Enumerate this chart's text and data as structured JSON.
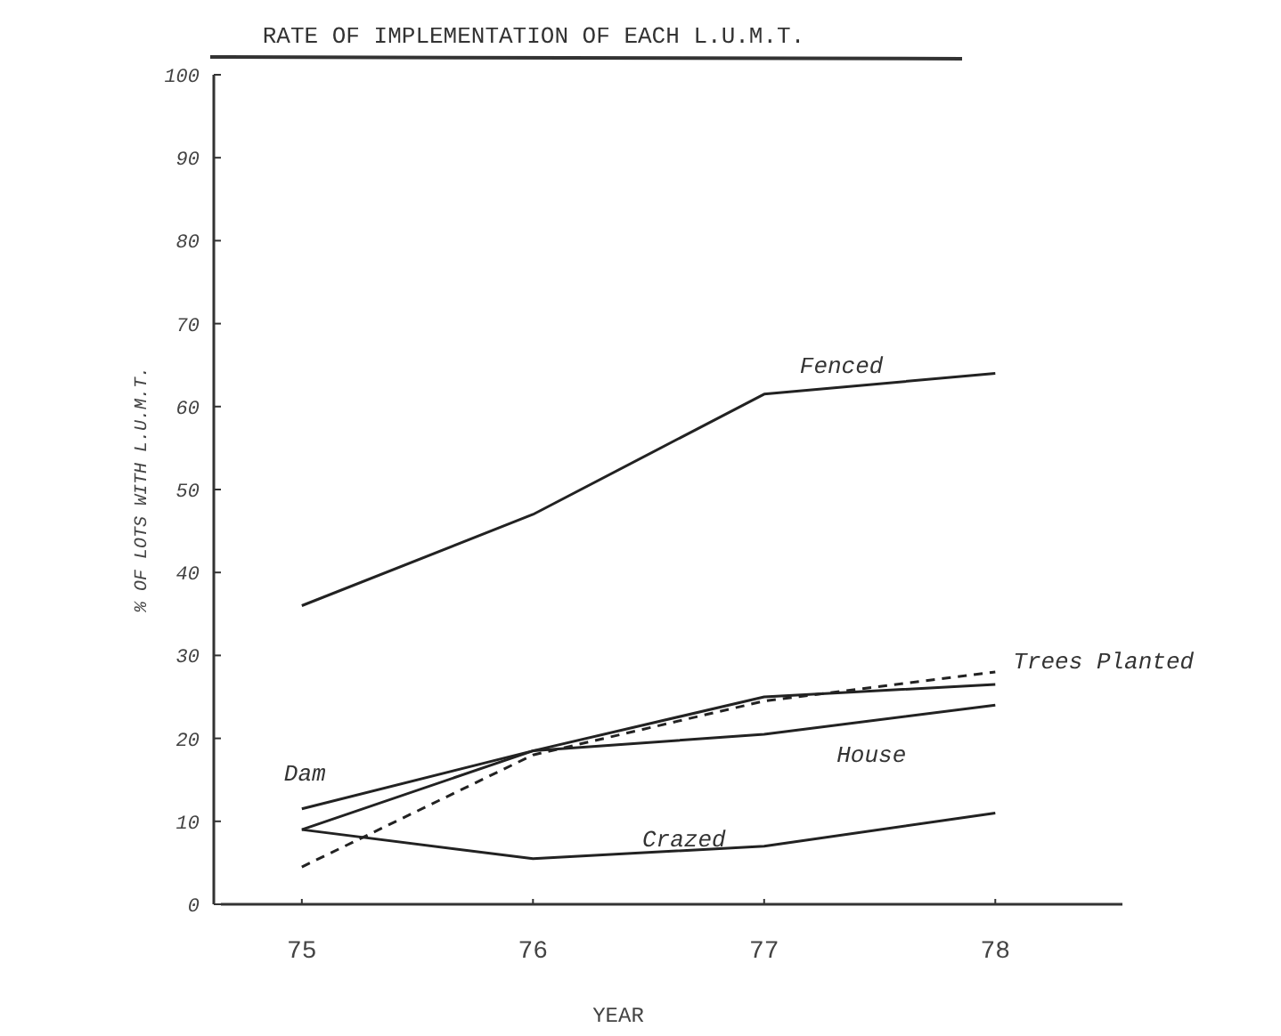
{
  "chart_data": {
    "type": "line",
    "title": "RATE OF IMPLEMENTATION OF EACH L.U.M.T.",
    "xlabel": "YEAR",
    "ylabel": "% OF LOTS WITH L.U.M.T.",
    "x": [
      75,
      76,
      77,
      78
    ],
    "xlim": [
      74.65,
      78.55
    ],
    "xticks": [
      75,
      76,
      77,
      78
    ],
    "ylim": [
      0,
      100
    ],
    "yticks": [
      0,
      10,
      20,
      30,
      40,
      50,
      60,
      70,
      80,
      90,
      100
    ],
    "grid": false,
    "marker": "none",
    "series": [
      {
        "name": "Fenced",
        "color": "#222222",
        "values": [
          36,
          47,
          61.5,
          64
        ]
      },
      {
        "name": "Dam",
        "color": "#222222",
        "values": [
          11.5,
          18.5,
          25,
          26.5
        ]
      },
      {
        "name": "House",
        "color": "#222222",
        "values": [
          9,
          18.5,
          20.5,
          24
        ]
      },
      {
        "name": "Crazed",
        "color": "#222222",
        "values": [
          9,
          5.5,
          7,
          11
        ]
      },
      {
        "name": "Trees Planted",
        "color": "#222222",
        "line_style": "dashed",
        "values": [
          4.5,
          18,
          24.5,
          28
        ]
      }
    ]
  }
}
